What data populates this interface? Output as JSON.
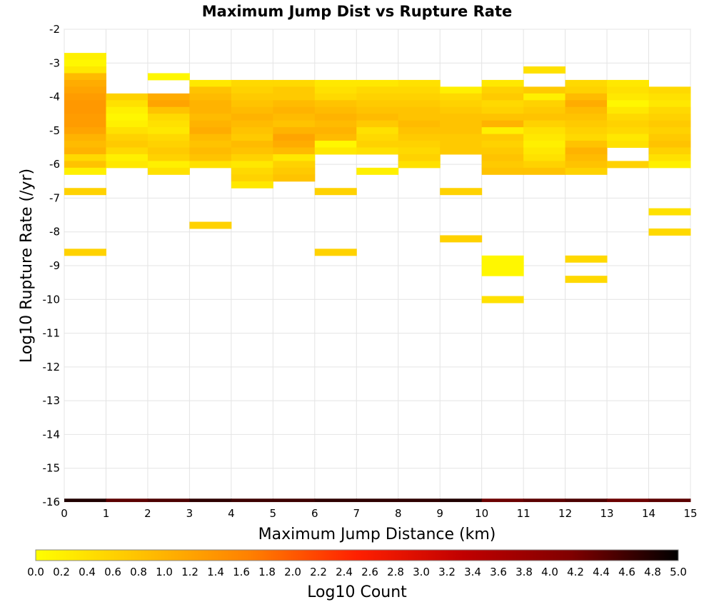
{
  "chart_data": {
    "type": "heatmap",
    "title": "Maximum Jump Dist vs Rupture Rate",
    "xlabel": "Maximum Jump Distance (km)",
    "ylabel": "Log10 Rupture Rate (/yr)",
    "xlim": [
      0,
      15
    ],
    "ylim": [
      -16,
      -2
    ],
    "x_ticks": [
      "0",
      "1",
      "2",
      "3",
      "4",
      "5",
      "6",
      "7",
      "8",
      "9",
      "10",
      "11",
      "12",
      "13",
      "14",
      "15"
    ],
    "y_ticks": [
      "-2",
      "-3",
      "-4",
      "-5",
      "-6",
      "-7",
      "-8",
      "-9",
      "-10",
      "-11",
      "-12",
      "-13",
      "-14",
      "-15",
      "-16"
    ],
    "x_bin_width": 1,
    "y_bin_height": 0.2,
    "grid": true,
    "colorbar": {
      "label": "Log10 Count",
      "min": 0.0,
      "max": 5.0,
      "ticks": [
        "0.0",
        "0.2",
        "0.4",
        "0.6",
        "0.8",
        "1.0",
        "1.2",
        "1.4",
        "1.6",
        "1.8",
        "2.0",
        "2.2",
        "2.4",
        "2.6",
        "2.8",
        "3.0",
        "3.2",
        "3.4",
        "3.6",
        "3.8",
        "4.0",
        "4.2",
        "4.4",
        "4.6",
        "4.8",
        "5.0"
      ],
      "colors": [
        "#ffff00",
        "#ffc000",
        "#ff8000",
        "#ff2000",
        "#c00000",
        "#800000",
        "#000000"
      ]
    },
    "bottom_row": {
      "y": -16,
      "values": [
        4.8,
        4.4,
        4.5,
        4.7,
        4.6,
        4.6,
        4.7,
        4.7,
        4.7,
        4.8,
        4.3,
        4.4,
        4.5,
        4.3,
        4.4
      ]
    },
    "columns": [
      {
        "x": 0,
        "cells": [
          [
            -2.8,
            0.2
          ],
          [
            -3.0,
            0.1
          ],
          [
            -3.2,
            0.3
          ],
          [
            -3.4,
            0.9
          ],
          [
            -3.6,
            1.1
          ],
          [
            -3.8,
            1.2
          ],
          [
            -4.0,
            1.3
          ],
          [
            -4.2,
            1.35
          ],
          [
            -4.4,
            1.35
          ],
          [
            -4.6,
            1.3
          ],
          [
            -4.8,
            1.3
          ],
          [
            -5.0,
            1.2
          ],
          [
            -5.2,
            1.0
          ],
          [
            -5.4,
            0.9
          ],
          [
            -5.6,
            1.0
          ],
          [
            -5.8,
            0.5
          ],
          [
            -6.0,
            0.8
          ],
          [
            -6.2,
            0.2
          ],
          [
            -6.8,
            0.6
          ],
          [
            -8.6,
            0.6
          ]
        ]
      },
      {
        "x": 1,
        "cells": [
          [
            -4.0,
            0.6
          ],
          [
            -4.2,
            0.4
          ],
          [
            -4.4,
            0.2
          ],
          [
            -4.6,
            0.1
          ],
          [
            -4.8,
            0.2
          ],
          [
            -5.0,
            0.4
          ],
          [
            -5.2,
            0.6
          ],
          [
            -5.4,
            0.7
          ],
          [
            -5.6,
            0.5
          ],
          [
            -5.8,
            0.2
          ],
          [
            -6.0,
            0.3
          ]
        ]
      },
      {
        "x": 2,
        "cells": [
          [
            -3.4,
            0.1
          ],
          [
            -4.0,
            1.1
          ],
          [
            -4.2,
            1.2
          ],
          [
            -4.4,
            0.8
          ],
          [
            -4.6,
            0.5
          ],
          [
            -4.8,
            0.4
          ],
          [
            -5.0,
            0.3
          ],
          [
            -5.2,
            0.5
          ],
          [
            -5.4,
            0.6
          ],
          [
            -5.6,
            0.7
          ],
          [
            -5.8,
            0.6
          ],
          [
            -6.0,
            0.2
          ],
          [
            -6.2,
            0.4
          ]
        ]
      },
      {
        "x": 3,
        "cells": [
          [
            -3.6,
            0.3
          ],
          [
            -3.8,
            0.8
          ],
          [
            -4.0,
            0.9
          ],
          [
            -4.2,
            1.0
          ],
          [
            -4.4,
            1.0
          ],
          [
            -4.6,
            0.9
          ],
          [
            -4.8,
            1.0
          ],
          [
            -5.0,
            1.1
          ],
          [
            -5.2,
            0.9
          ],
          [
            -5.4,
            0.8
          ],
          [
            -5.6,
            0.9
          ],
          [
            -5.8,
            0.8
          ],
          [
            -6.0,
            0.4
          ],
          [
            -7.8,
            0.6
          ]
        ]
      },
      {
        "x": 4,
        "cells": [
          [
            -3.6,
            0.5
          ],
          [
            -3.8,
            0.6
          ],
          [
            -4.0,
            0.7
          ],
          [
            -4.2,
            0.8
          ],
          [
            -4.4,
            0.9
          ],
          [
            -4.6,
            1.0
          ],
          [
            -4.8,
            0.9
          ],
          [
            -5.0,
            0.8
          ],
          [
            -5.2,
            0.7
          ],
          [
            -5.4,
            0.9
          ],
          [
            -5.6,
            0.8
          ],
          [
            -5.8,
            0.6
          ],
          [
            -6.0,
            0.3
          ],
          [
            -6.2,
            0.5
          ],
          [
            -6.4,
            0.6
          ],
          [
            -6.6,
            0.3
          ]
        ]
      },
      {
        "x": 5,
        "cells": [
          [
            -3.6,
            0.5
          ],
          [
            -3.8,
            0.7
          ],
          [
            -4.0,
            0.7
          ],
          [
            -4.2,
            0.9
          ],
          [
            -4.4,
            1.0
          ],
          [
            -4.6,
            0.9
          ],
          [
            -4.8,
            0.8
          ],
          [
            -5.0,
            1.0
          ],
          [
            -5.2,
            1.2
          ],
          [
            -5.4,
            1.1
          ],
          [
            -5.6,
            0.9
          ],
          [
            -5.8,
            0.3
          ],
          [
            -6.0,
            0.6
          ],
          [
            -6.2,
            0.7
          ],
          [
            -6.4,
            0.8
          ]
        ]
      },
      {
        "x": 6,
        "cells": [
          [
            -3.6,
            0.3
          ],
          [
            -3.8,
            0.4
          ],
          [
            -4.0,
            0.5
          ],
          [
            -4.2,
            0.8
          ],
          [
            -4.4,
            0.9
          ],
          [
            -4.6,
            1.0
          ],
          [
            -4.8,
            0.9
          ],
          [
            -5.0,
            1.0
          ],
          [
            -5.2,
            0.9
          ],
          [
            -5.4,
            0.1
          ],
          [
            -5.6,
            0.3
          ],
          [
            -6.8,
            0.6
          ],
          [
            -8.6,
            0.6
          ]
        ]
      },
      {
        "x": 7,
        "cells": [
          [
            -3.6,
            0.3
          ],
          [
            -3.8,
            0.5
          ],
          [
            -4.0,
            0.6
          ],
          [
            -4.2,
            0.7
          ],
          [
            -4.4,
            0.8
          ],
          [
            -4.6,
            0.9
          ],
          [
            -4.8,
            0.7
          ],
          [
            -5.0,
            0.4
          ],
          [
            -5.2,
            0.5
          ],
          [
            -5.4,
            0.6
          ],
          [
            -5.6,
            0.4
          ],
          [
            -6.2,
            0.2
          ]
        ]
      },
      {
        "x": 8,
        "cells": [
          [
            -3.6,
            0.4
          ],
          [
            -3.8,
            0.5
          ],
          [
            -4.0,
            0.6
          ],
          [
            -4.2,
            0.7
          ],
          [
            -4.4,
            0.8
          ],
          [
            -4.6,
            0.8
          ],
          [
            -4.8,
            0.9
          ],
          [
            -5.0,
            0.8
          ],
          [
            -5.2,
            0.7
          ],
          [
            -5.4,
            0.6
          ],
          [
            -5.6,
            0.5
          ],
          [
            -5.8,
            0.6
          ],
          [
            -6.0,
            0.4
          ]
        ]
      },
      {
        "x": 9,
        "cells": [
          [
            -3.8,
            0.2
          ],
          [
            -4.0,
            0.5
          ],
          [
            -4.2,
            0.6
          ],
          [
            -4.4,
            0.7
          ],
          [
            -4.6,
            0.8
          ],
          [
            -4.8,
            0.8
          ],
          [
            -5.0,
            0.8
          ],
          [
            -5.2,
            0.7
          ],
          [
            -5.4,
            0.7
          ],
          [
            -5.6,
            0.7
          ],
          [
            -6.8,
            0.6
          ],
          [
            -8.2,
            0.6
          ]
        ]
      },
      {
        "x": 10,
        "cells": [
          [
            -3.6,
            0.3
          ],
          [
            -3.8,
            0.6
          ],
          [
            -4.0,
            0.7
          ],
          [
            -4.2,
            0.5
          ],
          [
            -4.4,
            0.6
          ],
          [
            -4.6,
            0.8
          ],
          [
            -4.8,
            1.0
          ],
          [
            -5.0,
            0.2
          ],
          [
            -5.2,
            0.7
          ],
          [
            -5.4,
            0.6
          ],
          [
            -5.6,
            0.7
          ],
          [
            -5.8,
            0.8
          ],
          [
            -6.0,
            0.7
          ],
          [
            -6.2,
            0.8
          ],
          [
            -8.8,
            0.1
          ],
          [
            -9.0,
            0.1
          ],
          [
            -9.2,
            0.1
          ],
          [
            -10.0,
            0.4
          ]
        ]
      },
      {
        "x": 11,
        "cells": [
          [
            -3.2,
            0.4
          ],
          [
            -3.8,
            0.7
          ],
          [
            -4.0,
            0.2
          ],
          [
            -4.2,
            0.6
          ],
          [
            -4.4,
            0.7
          ],
          [
            -4.6,
            0.8
          ],
          [
            -4.8,
            0.6
          ],
          [
            -5.0,
            0.4
          ],
          [
            -5.2,
            0.3
          ],
          [
            -5.4,
            0.2
          ],
          [
            -5.6,
            0.3
          ],
          [
            -5.8,
            0.4
          ],
          [
            -6.0,
            0.6
          ],
          [
            -6.2,
            0.8
          ]
        ]
      },
      {
        "x": 12,
        "cells": [
          [
            -3.6,
            0.5
          ],
          [
            -3.8,
            0.6
          ],
          [
            -4.0,
            0.9
          ],
          [
            -4.2,
            1.1
          ],
          [
            -4.4,
            0.9
          ],
          [
            -4.6,
            0.8
          ],
          [
            -4.8,
            0.7
          ],
          [
            -5.0,
            0.6
          ],
          [
            -5.2,
            0.5
          ],
          [
            -5.4,
            0.8
          ],
          [
            -5.6,
            1.0
          ],
          [
            -5.8,
            0.9
          ],
          [
            -6.0,
            0.8
          ],
          [
            -6.2,
            0.6
          ],
          [
            -8.8,
            0.5
          ],
          [
            -9.4,
            0.5
          ]
        ]
      },
      {
        "x": 13,
        "cells": [
          [
            -3.6,
            0.3
          ],
          [
            -3.8,
            0.4
          ],
          [
            -4.0,
            0.3
          ],
          [
            -4.2,
            0.1
          ],
          [
            -4.4,
            0.3
          ],
          [
            -4.6,
            0.5
          ],
          [
            -4.8,
            0.6
          ],
          [
            -5.0,
            0.5
          ],
          [
            -5.2,
            0.3
          ],
          [
            -5.4,
            0.4
          ],
          [
            -6.0,
            0.6
          ]
        ]
      },
      {
        "x": 14,
        "cells": [
          [
            -3.8,
            0.5
          ],
          [
            -4.0,
            0.4
          ],
          [
            -4.2,
            0.3
          ],
          [
            -4.4,
            0.5
          ],
          [
            -4.6,
            0.6
          ],
          [
            -4.8,
            0.7
          ],
          [
            -5.0,
            0.6
          ],
          [
            -5.2,
            0.7
          ],
          [
            -5.4,
            0.8
          ],
          [
            -5.6,
            0.6
          ],
          [
            -5.8,
            0.4
          ],
          [
            -6.0,
            0.2
          ],
          [
            -7.4,
            0.4
          ],
          [
            -8.0,
            0.5
          ]
        ]
      }
    ]
  }
}
